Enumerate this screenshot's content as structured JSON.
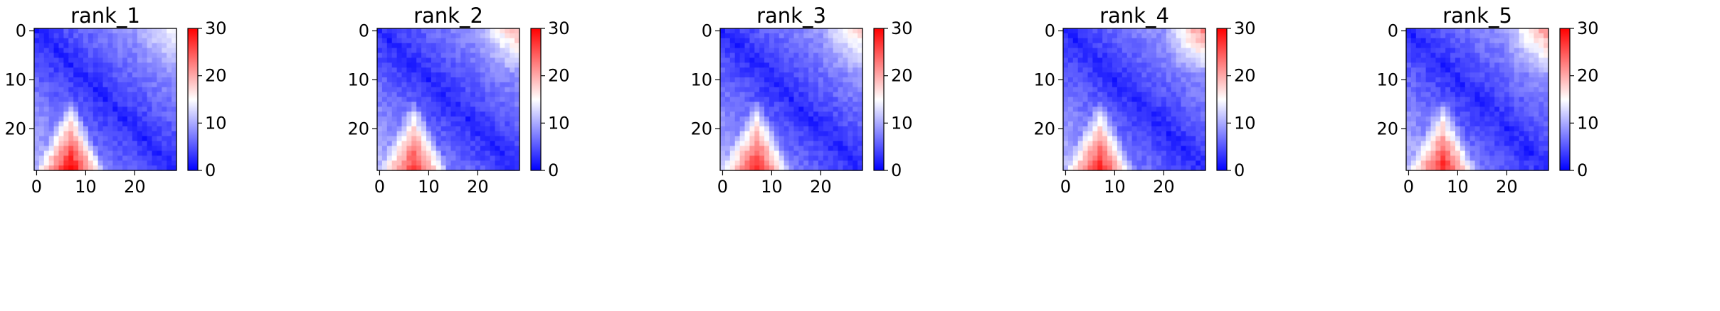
{
  "chart_data": [
    {
      "type": "heatmap",
      "title": "rank_1",
      "grid_size": 29,
      "x_ticks": [
        "0",
        "10",
        "20"
      ],
      "y_ticks": [
        "0",
        "10",
        "20"
      ],
      "colorbar": {
        "min": 0,
        "max": 30,
        "ticks": [
          "0",
          "10",
          "20",
          "30"
        ],
        "colormap": "bwr"
      },
      "pattern": {
        "diagonal": 0,
        "far_corner": 14,
        "bottom_peak": 30,
        "peak_col": 7
      }
    },
    {
      "type": "heatmap",
      "title": "rank_2",
      "grid_size": 29,
      "x_ticks": [
        "0",
        "10",
        "20"
      ],
      "y_ticks": [
        "0",
        "10",
        "20"
      ],
      "colorbar": {
        "min": 0,
        "max": 30,
        "ticks": [
          "0",
          "10",
          "20",
          "30"
        ],
        "colormap": "bwr"
      },
      "pattern": {
        "diagonal": 0,
        "far_corner": 19,
        "bottom_peak": 27,
        "peak_col": 7
      }
    },
    {
      "type": "heatmap",
      "title": "rank_3",
      "grid_size": 29,
      "x_ticks": [
        "0",
        "10",
        "20"
      ],
      "y_ticks": [
        "0",
        "10",
        "20"
      ],
      "colorbar": {
        "min": 0,
        "max": 30,
        "ticks": [
          "0",
          "10",
          "20",
          "30"
        ],
        "colormap": "bwr"
      },
      "pattern": {
        "diagonal": 0,
        "far_corner": 17,
        "bottom_peak": 28,
        "peak_col": 7
      }
    },
    {
      "type": "heatmap",
      "title": "rank_4",
      "grid_size": 29,
      "x_ticks": [
        "0",
        "10",
        "20"
      ],
      "y_ticks": [
        "0",
        "10",
        "20"
      ],
      "colorbar": {
        "min": 0,
        "max": 30,
        "ticks": [
          "0",
          "10",
          "20",
          "30"
        ],
        "colormap": "bwr"
      },
      "pattern": {
        "diagonal": 0,
        "far_corner": 22,
        "bottom_peak": 28,
        "peak_col": 7
      }
    },
    {
      "type": "heatmap",
      "title": "rank_5",
      "grid_size": 29,
      "x_ticks": [
        "0",
        "10",
        "20"
      ],
      "y_ticks": [
        "0",
        "10",
        "20"
      ],
      "colorbar": {
        "min": 0,
        "max": 30,
        "ticks": [
          "0",
          "10",
          "20",
          "30"
        ],
        "colormap": "bwr"
      },
      "pattern": {
        "diagonal": 0,
        "far_corner": 21,
        "bottom_peak": 28,
        "peak_col": 7
      }
    }
  ]
}
